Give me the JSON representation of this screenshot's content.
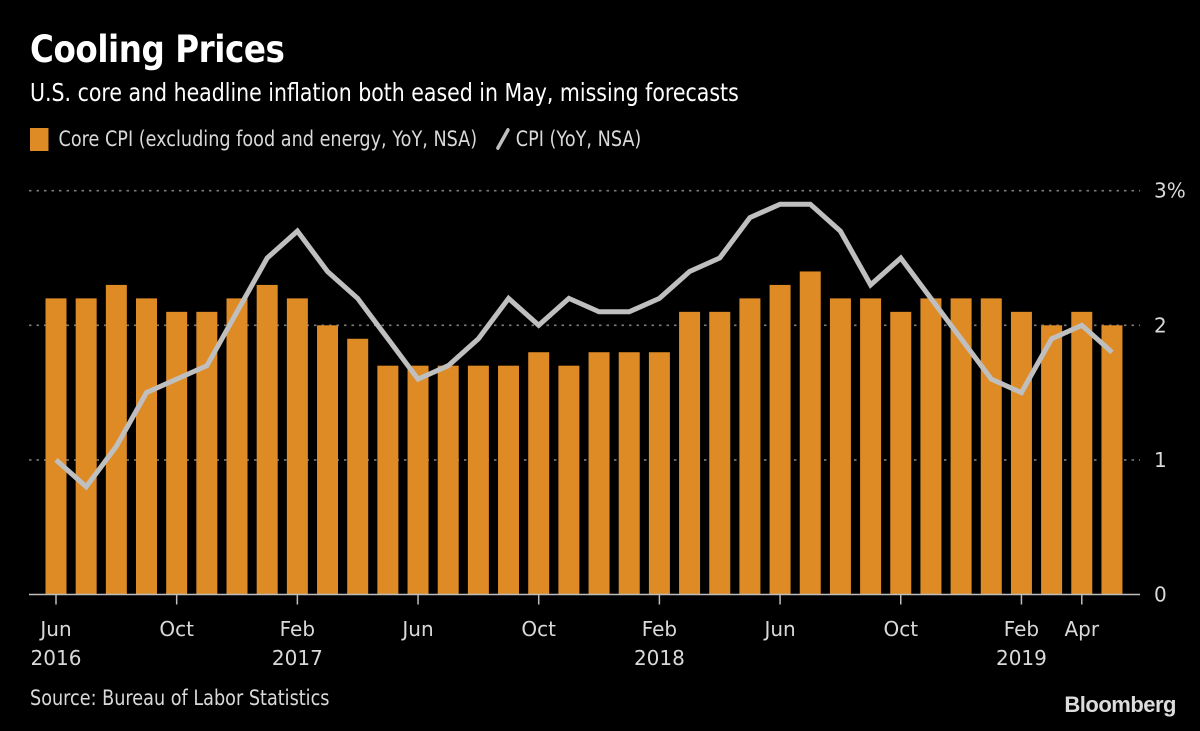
{
  "header": {
    "title": "Cooling Prices",
    "subtitle": "U.S. core and headline inflation both eased in May, missing forecasts"
  },
  "legend": {
    "items": [
      {
        "label": "Core CPI (excluding food and energy, YoY, NSA)",
        "type": "bar",
        "color": "#DE8B25"
      },
      {
        "label": "CPI (YoY, NSA)",
        "type": "line",
        "color": "#BFBFBF"
      }
    ]
  },
  "footer": {
    "source": "Source: Bureau of Labor Statistics",
    "brand": "Bloomberg"
  },
  "chart_data": {
    "type": "bar+line",
    "title": "Cooling Prices",
    "subtitle": "U.S. core and headline inflation both eased in May, missing forecasts",
    "xlabel": "",
    "ylabel": "",
    "ylim": [
      0,
      3
    ],
    "y_ticks": [
      {
        "value": 0,
        "label": "0"
      },
      {
        "value": 1,
        "label": "1"
      },
      {
        "value": 2,
        "label": "2"
      },
      {
        "value": 3,
        "label": "3%"
      }
    ],
    "grid": true,
    "legend_position": "top-left",
    "categories": [
      "Jun 2016",
      "Jul 2016",
      "Aug 2016",
      "Sep 2016",
      "Oct 2016",
      "Nov 2016",
      "Dec 2016",
      "Jan 2017",
      "Feb 2017",
      "Mar 2017",
      "Apr 2017",
      "May 2017",
      "Jun 2017",
      "Jul 2017",
      "Aug 2017",
      "Sep 2017",
      "Oct 2017",
      "Nov 2017",
      "Dec 2017",
      "Jan 2018",
      "Feb 2018",
      "Mar 2018",
      "Apr 2018",
      "May 2018",
      "Jun 2018",
      "Jul 2018",
      "Aug 2018",
      "Sep 2018",
      "Oct 2018",
      "Nov 2018",
      "Dec 2018",
      "Jan 2019",
      "Feb 2019",
      "Mar 2019",
      "Apr 2019",
      "May 2019"
    ],
    "x_ticks": [
      {
        "index": 0,
        "label": "Jun",
        "year": "2016"
      },
      {
        "index": 4,
        "label": "Oct",
        "year": ""
      },
      {
        "index": 8,
        "label": "Feb",
        "year": "2017"
      },
      {
        "index": 12,
        "label": "Jun",
        "year": ""
      },
      {
        "index": 16,
        "label": "Oct",
        "year": ""
      },
      {
        "index": 20,
        "label": "Feb",
        "year": "2018"
      },
      {
        "index": 24,
        "label": "Jun",
        "year": ""
      },
      {
        "index": 28,
        "label": "Oct",
        "year": ""
      },
      {
        "index": 32,
        "label": "Feb",
        "year": "2019"
      },
      {
        "index": 34,
        "label": "Apr",
        "year": ""
      }
    ],
    "series": [
      {
        "name": "Core CPI (excluding food and energy, YoY, NSA)",
        "type": "bar",
        "color": "#DE8B25",
        "values": [
          2.2,
          2.2,
          2.3,
          2.2,
          2.1,
          2.1,
          2.2,
          2.3,
          2.2,
          2.0,
          1.9,
          1.7,
          1.7,
          1.7,
          1.7,
          1.7,
          1.8,
          1.7,
          1.8,
          1.8,
          1.8,
          2.1,
          2.1,
          2.2,
          2.3,
          2.4,
          2.2,
          2.2,
          2.1,
          2.2,
          2.2,
          2.2,
          2.1,
          2.0,
          2.1,
          2.0
        ]
      },
      {
        "name": "CPI (YoY, NSA)",
        "type": "line",
        "color": "#BFBFBF",
        "values": [
          1.0,
          0.8,
          1.1,
          1.5,
          1.6,
          1.7,
          2.1,
          2.5,
          2.7,
          2.4,
          2.2,
          1.9,
          1.6,
          1.7,
          1.9,
          2.2,
          2.0,
          2.2,
          2.1,
          2.1,
          2.2,
          2.4,
          2.5,
          2.8,
          2.9,
          2.9,
          2.7,
          2.3,
          2.5,
          2.2,
          1.9,
          1.6,
          1.5,
          1.9,
          2.0,
          1.8
        ]
      }
    ]
  }
}
